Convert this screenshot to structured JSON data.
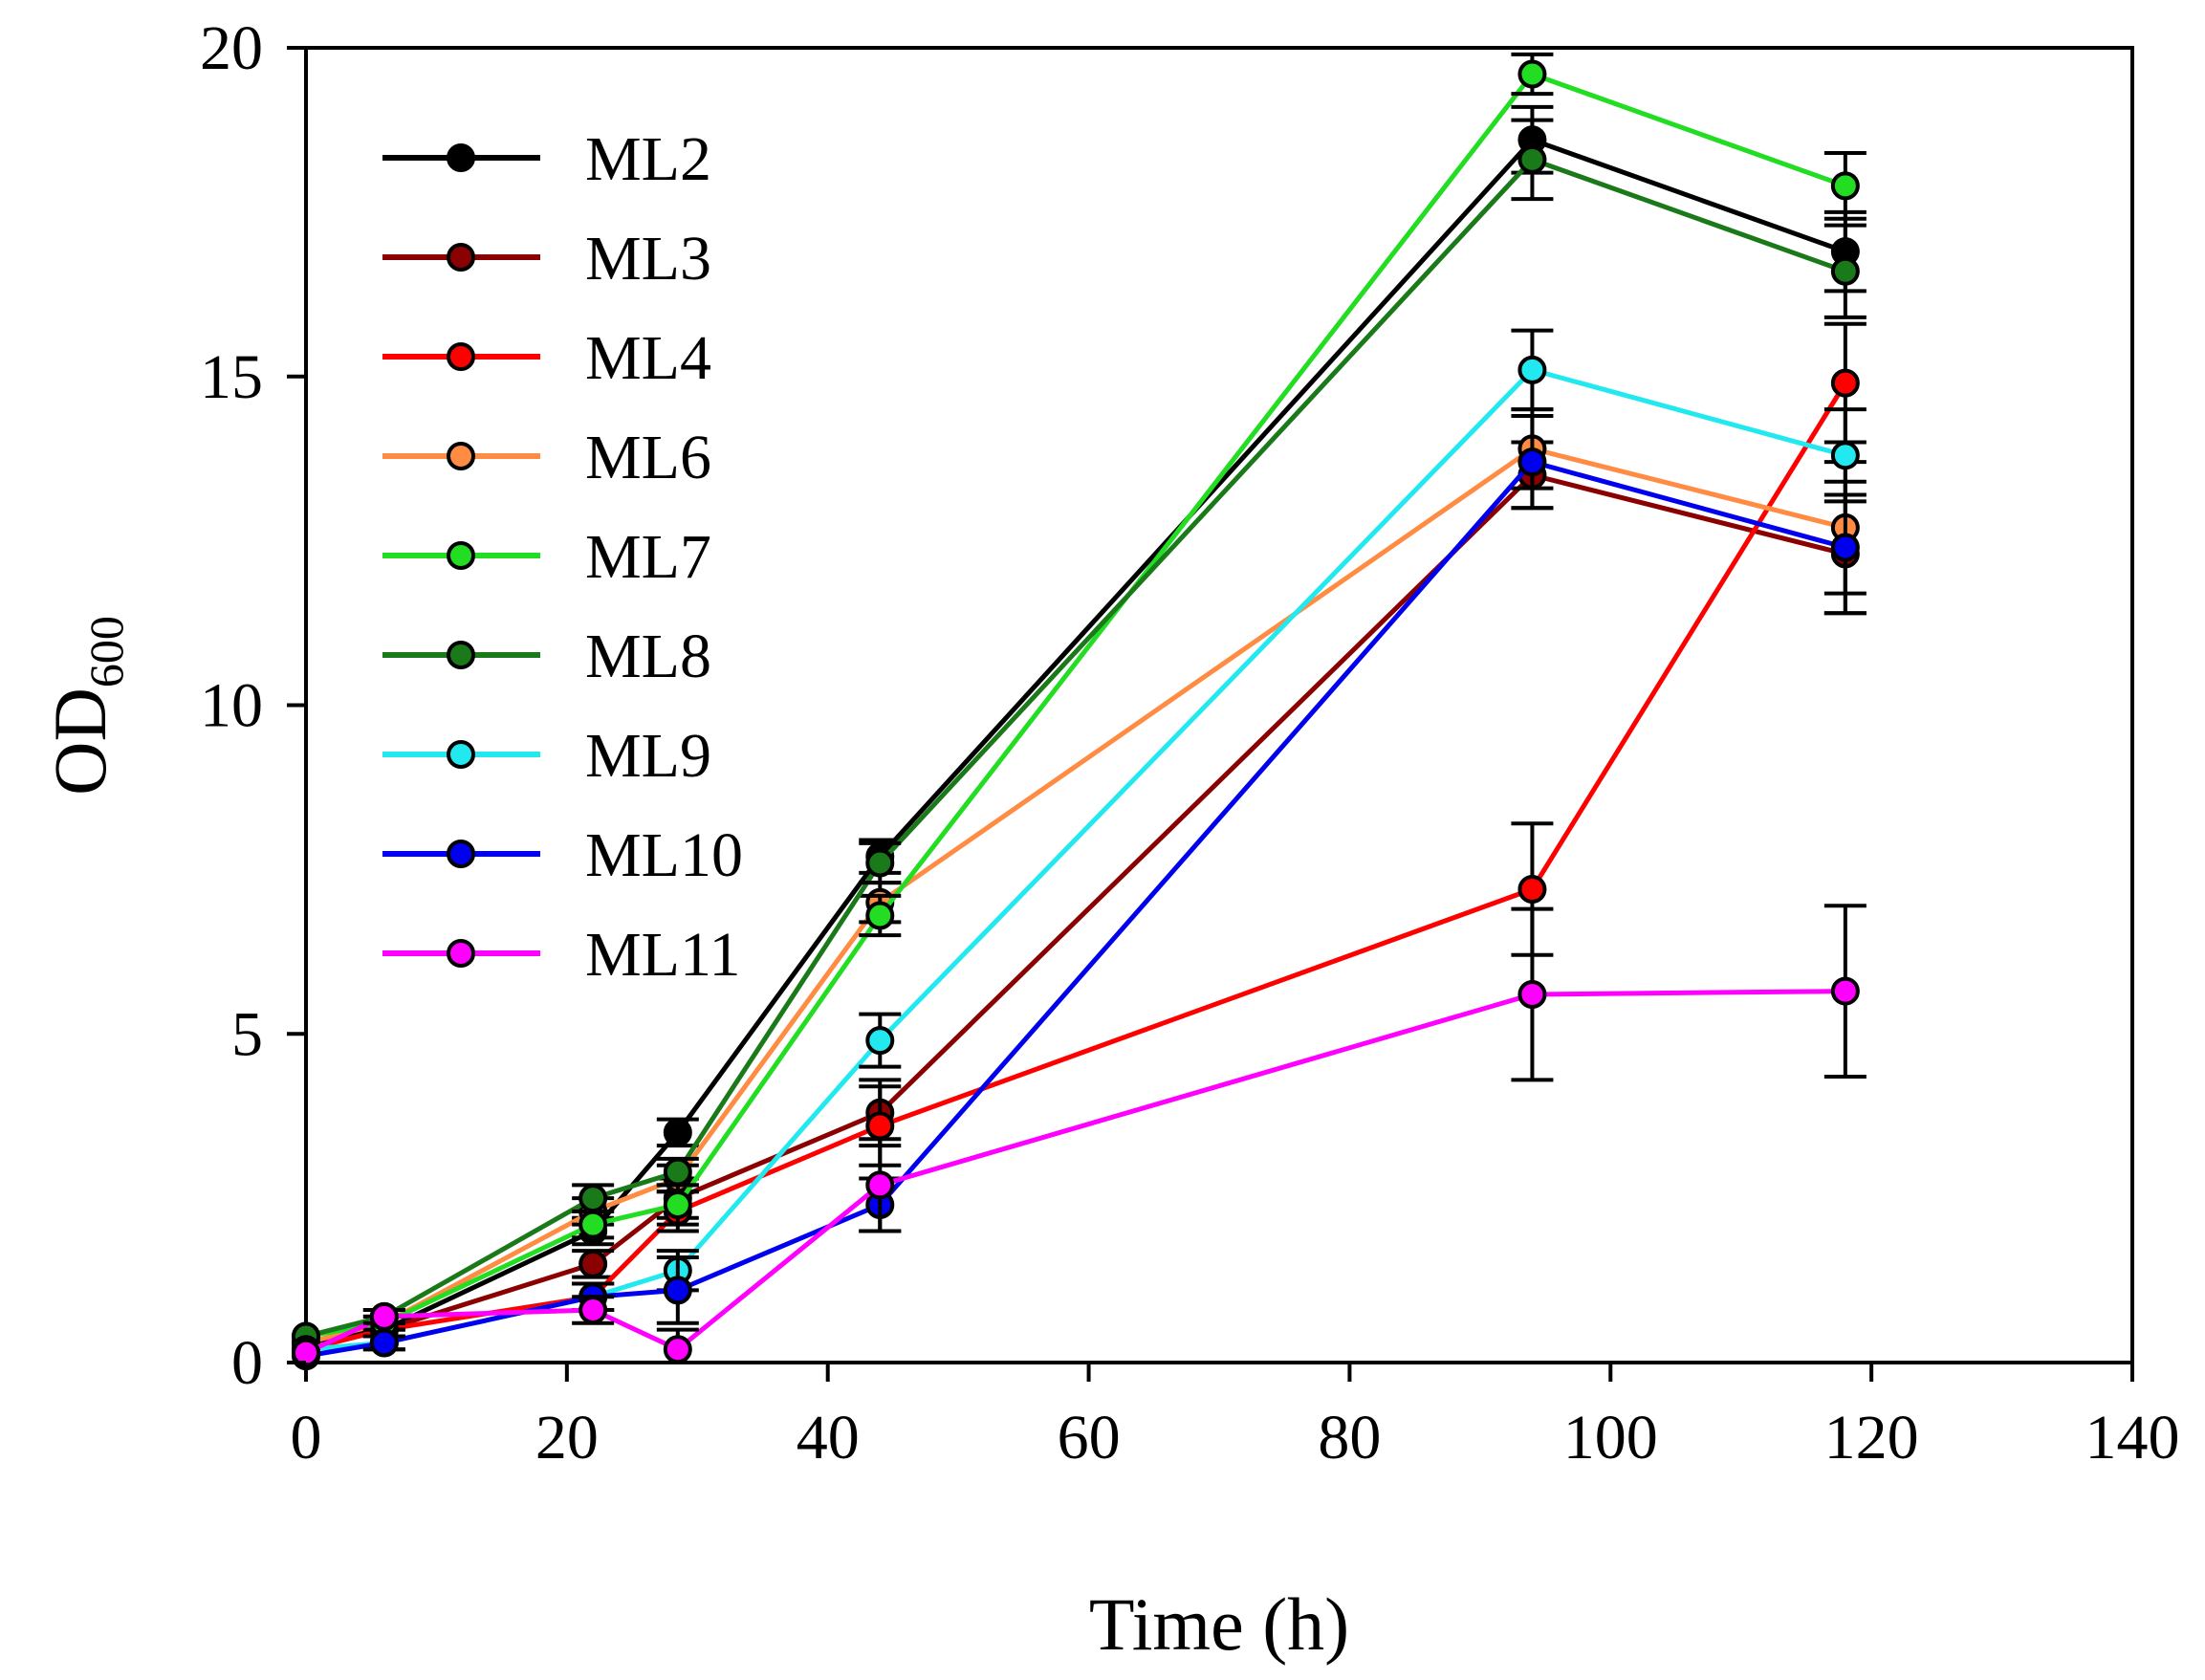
{
  "chart_data": {
    "type": "line",
    "title": "",
    "xlabel": "Time (h)",
    "ylabel": {
      "main": "OD",
      "sub": "600"
    },
    "xlim": [
      0,
      140
    ],
    "ylim": [
      0,
      20
    ],
    "xticks": [
      0,
      20,
      40,
      60,
      80,
      100,
      120,
      140
    ],
    "yticks": [
      0,
      5,
      10,
      15,
      20
    ],
    "grid": false,
    "legend_position": "top-left",
    "x": [
      0,
      6,
      22,
      28.5,
      44,
      94,
      118
    ],
    "series": [
      {
        "name": "ML2",
        "color": "#000000",
        "values": [
          0.3,
          0.5,
          2.0,
          3.5,
          7.7,
          18.6,
          16.9
        ],
        "errors": [
          0.05,
          0.1,
          0.2,
          0.2,
          0.25,
          0.5,
          0.6
        ]
      },
      {
        "name": "ML3",
        "color": "#8b0000",
        "values": [
          0.2,
          0.5,
          1.5,
          2.5,
          3.8,
          13.5,
          12.3
        ],
        "errors": [
          0.05,
          0.1,
          0.2,
          0.3,
          0.5,
          0.5,
          0.9
        ]
      },
      {
        "name": "ML4",
        "color": "#ff0000",
        "values": [
          0.2,
          0.5,
          1.0,
          2.3,
          3.6,
          7.2,
          14.9
        ],
        "errors": [
          0.05,
          0.1,
          0.2,
          0.3,
          0.6,
          1.0,
          0.9
        ]
      },
      {
        "name": "ML6",
        "color": "#ff8c42",
        "values": [
          0.3,
          0.6,
          2.3,
          2.8,
          7.0,
          13.9,
          12.7
        ],
        "errors": [
          0.05,
          0.1,
          0.2,
          0.2,
          0.3,
          0.6,
          1.0
        ]
      },
      {
        "name": "ML7",
        "color": "#22dd22",
        "values": [
          0.4,
          0.6,
          2.1,
          2.4,
          6.8,
          19.6,
          17.9
        ],
        "errors": [
          0.05,
          0.1,
          0.2,
          0.3,
          0.3,
          0.3,
          0.5
        ]
      },
      {
        "name": "ML8",
        "color": "#1a7a1a",
        "values": [
          0.4,
          0.7,
          2.5,
          2.9,
          7.6,
          18.3,
          16.6
        ],
        "errors": [
          0.05,
          0.1,
          0.2,
          0.2,
          0.3,
          0.6,
          0.7
        ]
      },
      {
        "name": "ML9",
        "color": "#22e8f0",
        "values": [
          0.2,
          0.3,
          1.0,
          1.4,
          4.9,
          15.1,
          13.8
        ],
        "errors": [
          0.05,
          0.1,
          0.2,
          0.3,
          0.4,
          0.6,
          0.7
        ]
      },
      {
        "name": "ML10",
        "color": "#0000ee",
        "values": [
          0.1,
          0.3,
          1.0,
          1.1,
          2.4,
          13.7,
          12.4
        ],
        "errors": [
          0.05,
          0.1,
          0.2,
          0.5,
          0.4,
          0.7,
          1.0
        ]
      },
      {
        "name": "ML11",
        "color": "#ff00ff",
        "values": [
          0.15,
          0.7,
          0.8,
          0.2,
          2.7,
          5.6,
          5.65
        ],
        "errors": [
          0.05,
          0.1,
          0.2,
          0.3,
          0.7,
          1.3,
          1.3
        ]
      }
    ]
  }
}
